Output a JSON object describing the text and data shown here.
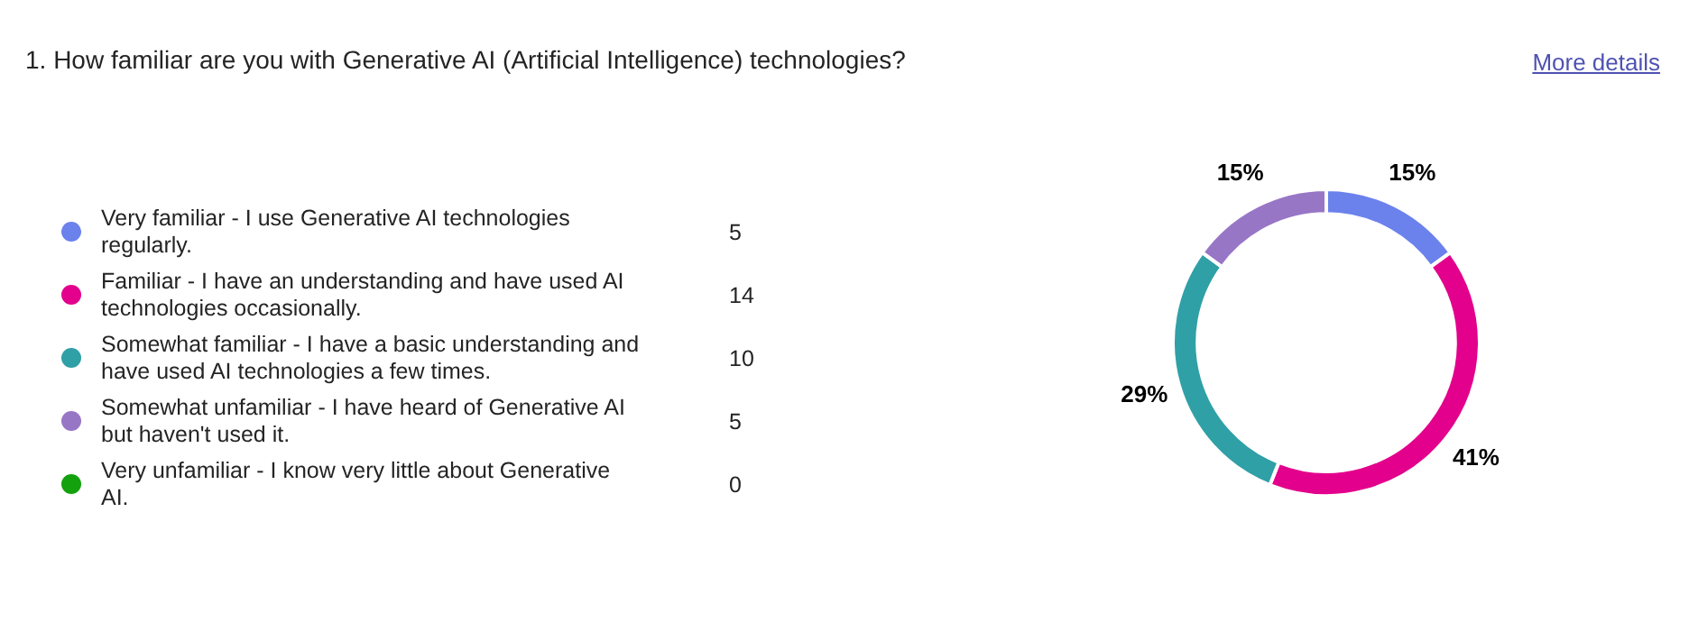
{
  "chart_data": {
    "type": "donut",
    "title": "1. How familiar are you with Generative AI (Artificial Intelligence) technologies?",
    "annotations": [
      "More details",
      "5",
      "14",
      "10",
      "5",
      "0"
    ],
    "categories": [
      "Very familiar - I use Generative AI technologies regularly.",
      "Familiar - I have an understanding and have used AI technologies occasionally.",
      "Somewhat familiar - I have a basic understanding and have used AI technologies a few times.",
      "Somewhat unfamiliar - I have heard of Generative AI but haven't used it.",
      "Very unfamiliar - I know very little about Generative AI."
    ],
    "values": [
      15,
      41,
      29,
      15,
      0
    ],
    "value_labels": [
      "15%",
      "41%",
      "29%",
      "15%",
      null
    ],
    "colors": [
      "#6b82ec",
      "#e3008c",
      "#2fa0a6",
      "#9876c6",
      "#13a10e"
    ],
    "legend": "left"
  }
}
